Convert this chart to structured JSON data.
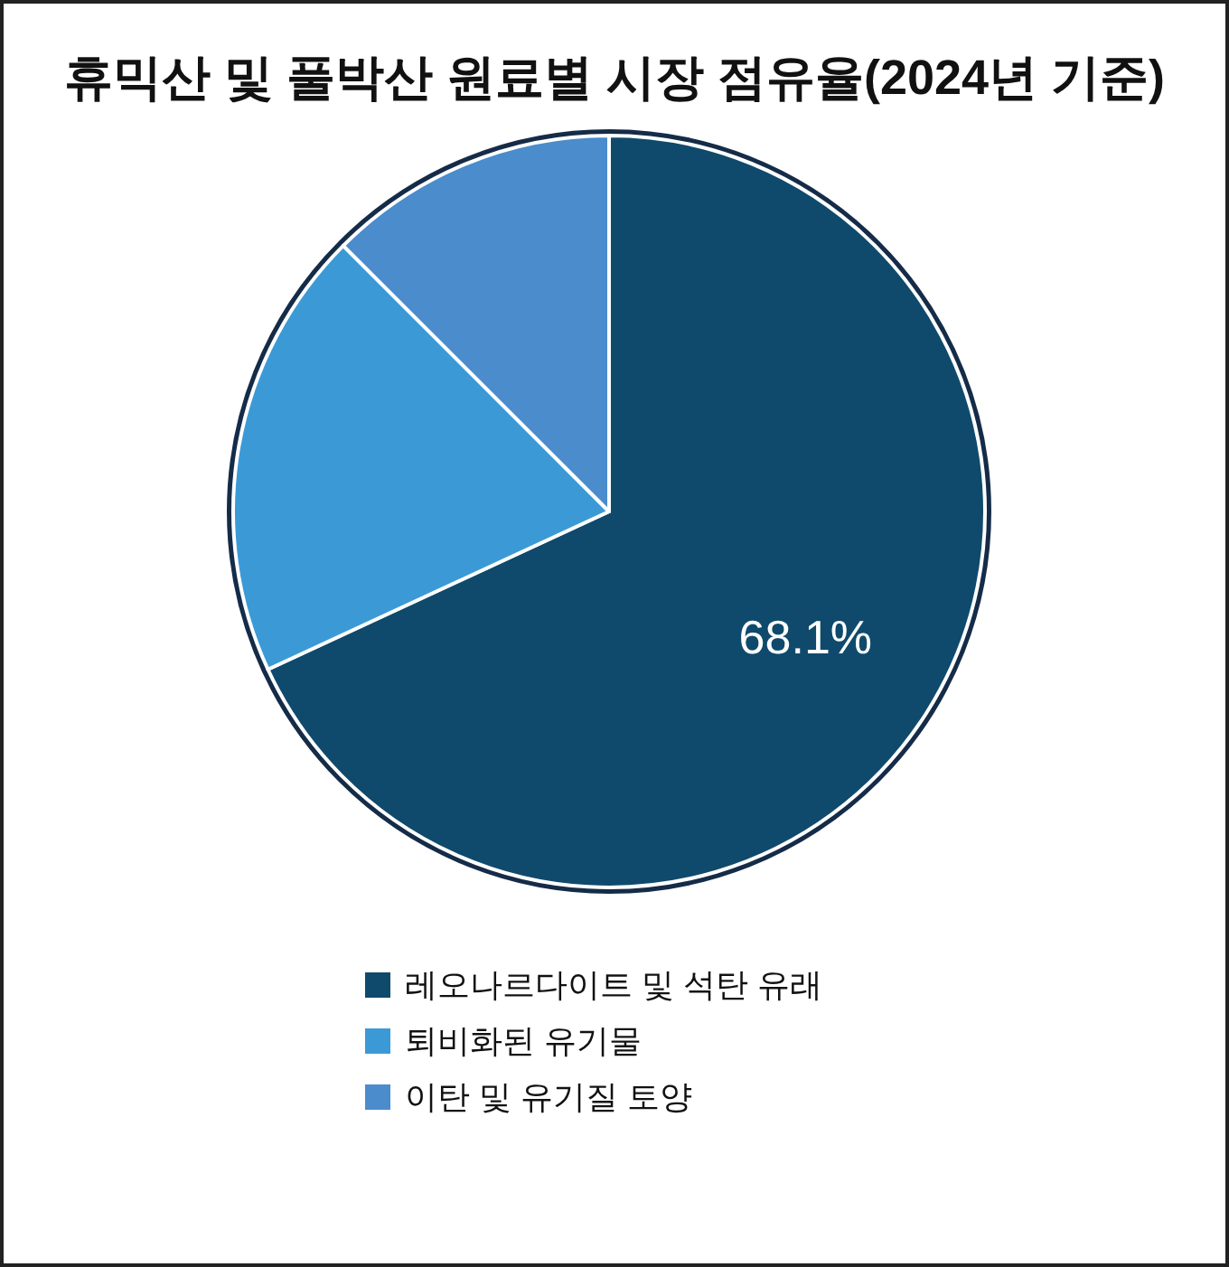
{
  "chart_data": {
    "type": "pie",
    "title": "휴믹산 및 풀박산 원료별 시장 점유율(2024년 기준)",
    "categories": [
      "레오나르다이트 및 석탄 유래",
      "퇴비화된 유기물",
      "이탄 및 유기질 토양"
    ],
    "values": [
      68.1,
      19.4,
      12.5
    ],
    "colors": [
      "#0f4a6c",
      "#3b9ad6",
      "#4a8ccc"
    ],
    "value_labels": [
      "68.1%",
      null,
      null
    ],
    "legend": "bottom"
  }
}
